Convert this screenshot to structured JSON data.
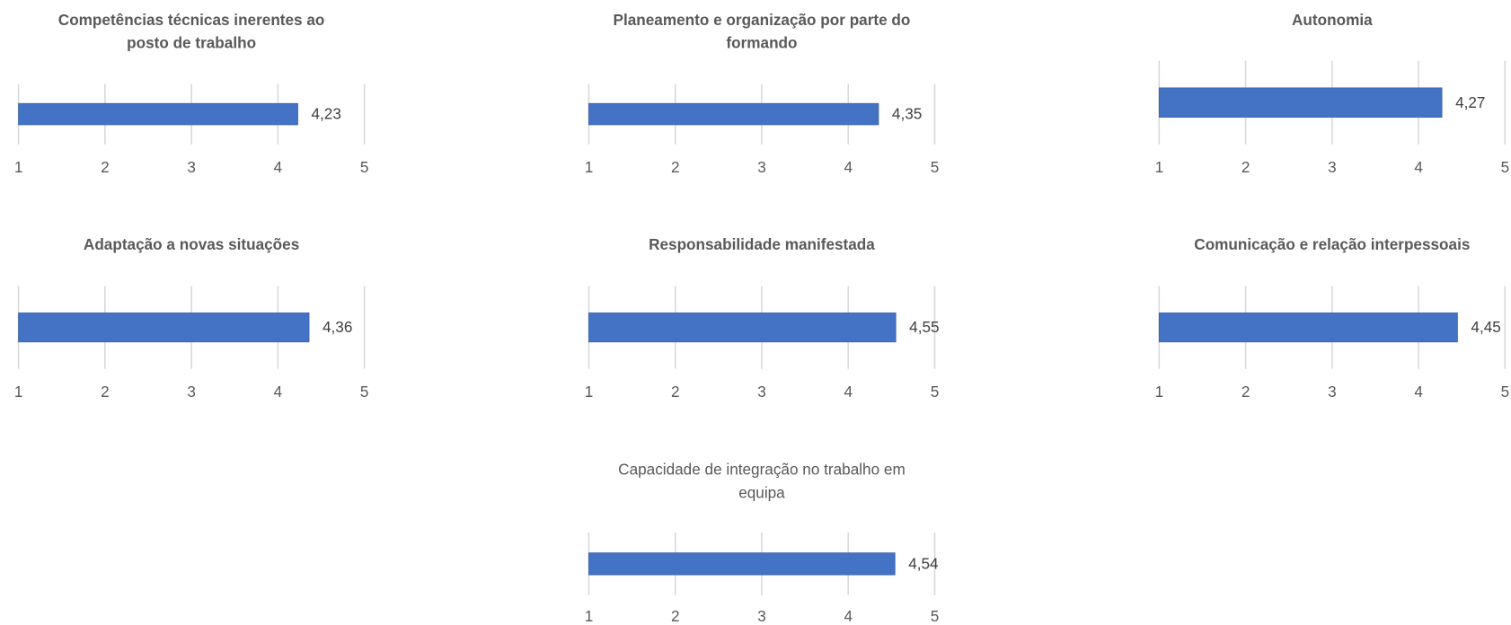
{
  "chart_data": [
    {
      "type": "bar",
      "title": "Competências técnicas inerentes ao posto de trabalho",
      "title_weight": "bold",
      "values": [
        4.23
      ],
      "value_labels": [
        "4,23"
      ],
      "color": "#4472c4",
      "xlim": [
        1,
        5
      ],
      "xticks": [
        1,
        2,
        3,
        4,
        5
      ],
      "grid": true
    },
    {
      "type": "bar",
      "title": "Planeamento e organização por parte do formando",
      "title_weight": "bold",
      "values": [
        4.35
      ],
      "value_labels": [
        "4,35"
      ],
      "color": "#4472c4",
      "xlim": [
        1,
        5
      ],
      "xticks": [
        1,
        2,
        3,
        4,
        5
      ],
      "grid": true
    },
    {
      "type": "bar",
      "title": "Autonomia",
      "title_weight": "bold",
      "values": [
        4.27
      ],
      "value_labels": [
        "4,27"
      ],
      "color": "#4472c4",
      "xlim": [
        1,
        5
      ],
      "xticks": [
        1,
        2,
        3,
        4,
        5
      ],
      "grid": true
    },
    {
      "type": "bar",
      "title": "Adaptação a novas situações",
      "title_weight": "bold",
      "values": [
        4.36
      ],
      "value_labels": [
        "4,36"
      ],
      "color": "#4472c4",
      "xlim": [
        1,
        5
      ],
      "xticks": [
        1,
        2,
        3,
        4,
        5
      ],
      "grid": true
    },
    {
      "type": "bar",
      "title": "Responsabilidade manifestada",
      "title_weight": "bold",
      "values": [
        4.55
      ],
      "value_labels": [
        "4,55"
      ],
      "color": "#4472c4",
      "xlim": [
        1,
        5
      ],
      "xticks": [
        1,
        2,
        3,
        4,
        5
      ],
      "grid": true
    },
    {
      "type": "bar",
      "title": "Comunicação e relação interpessoais",
      "title_weight": "bold",
      "values": [
        4.45
      ],
      "value_labels": [
        "4,45"
      ],
      "color": "#4472c4",
      "xlim": [
        1,
        5
      ],
      "xticks": [
        1,
        2,
        3,
        4,
        5
      ],
      "grid": true
    },
    {
      "type": "bar",
      "title": "Capacidade de integração no trabalho em equipa",
      "title_weight": "normal",
      "values": [
        4.54
      ],
      "value_labels": [
        "4,54"
      ],
      "color": "#4472c4",
      "xlim": [
        1,
        5
      ],
      "xticks": [
        1,
        2,
        3,
        4,
        5
      ],
      "grid": true
    }
  ]
}
